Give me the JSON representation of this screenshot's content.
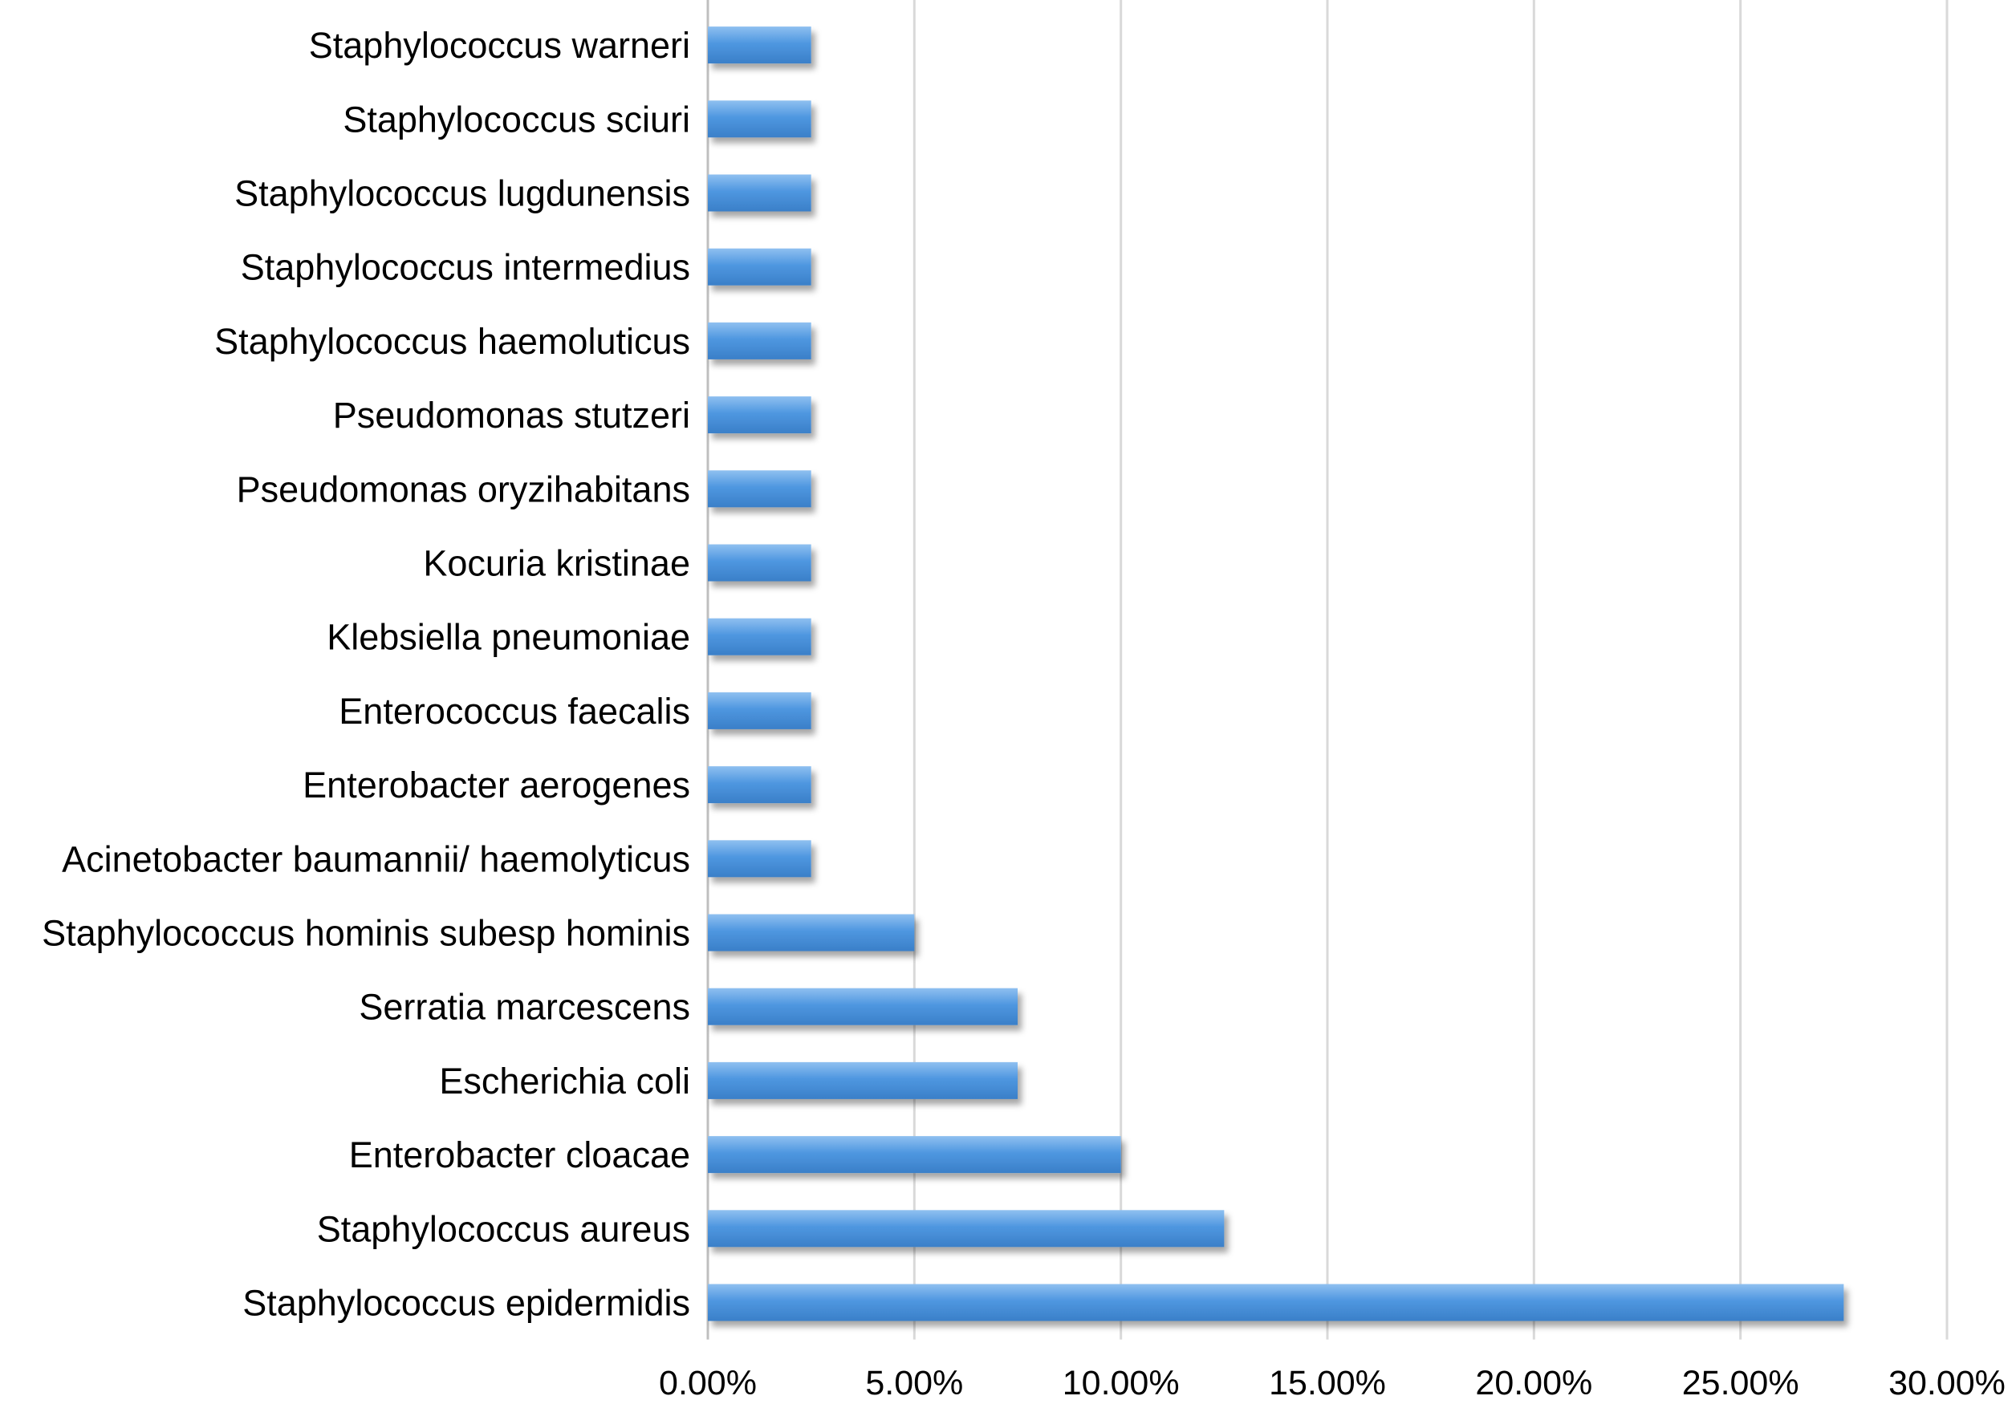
{
  "chart_data": {
    "type": "bar",
    "orientation": "horizontal",
    "categories": [
      "Staphylococcus warneri",
      "Staphylococcus sciuri",
      "Staphylococcus lugdunensis",
      "Staphylococcus intermedius",
      "Staphylococcus haemoluticus",
      "Pseudomonas stutzeri",
      "Pseudomonas oryzihabitans",
      "Kocuria kristinae",
      "Klebsiella pneumoniae",
      "Enterococcus faecalis",
      "Enterobacter aerogenes",
      "Acinetobacter baumannii/ haemolyticus",
      "Staphylococcus hominis subesp hominis",
      "Serratia marcescens",
      "Escherichia coli",
      "Enterobacter cloacae",
      "Staphylococcus aureus",
      "Staphylococcus epidermidis"
    ],
    "values": [
      0.025,
      0.025,
      0.025,
      0.025,
      0.025,
      0.025,
      0.025,
      0.025,
      0.025,
      0.025,
      0.025,
      0.025,
      0.05,
      0.075,
      0.075,
      0.1,
      0.125,
      0.275
    ],
    "xlim": [
      0,
      0.3
    ],
    "xticks": [
      "0.00%",
      "5.00%",
      "10.00%",
      "15.00%",
      "20.00%",
      "25.00%",
      "30.00%"
    ],
    "title": "",
    "xlabel": "",
    "ylabel": "",
    "grid": "vertical",
    "legend": "none",
    "bar_color": "#4a90d9"
  }
}
